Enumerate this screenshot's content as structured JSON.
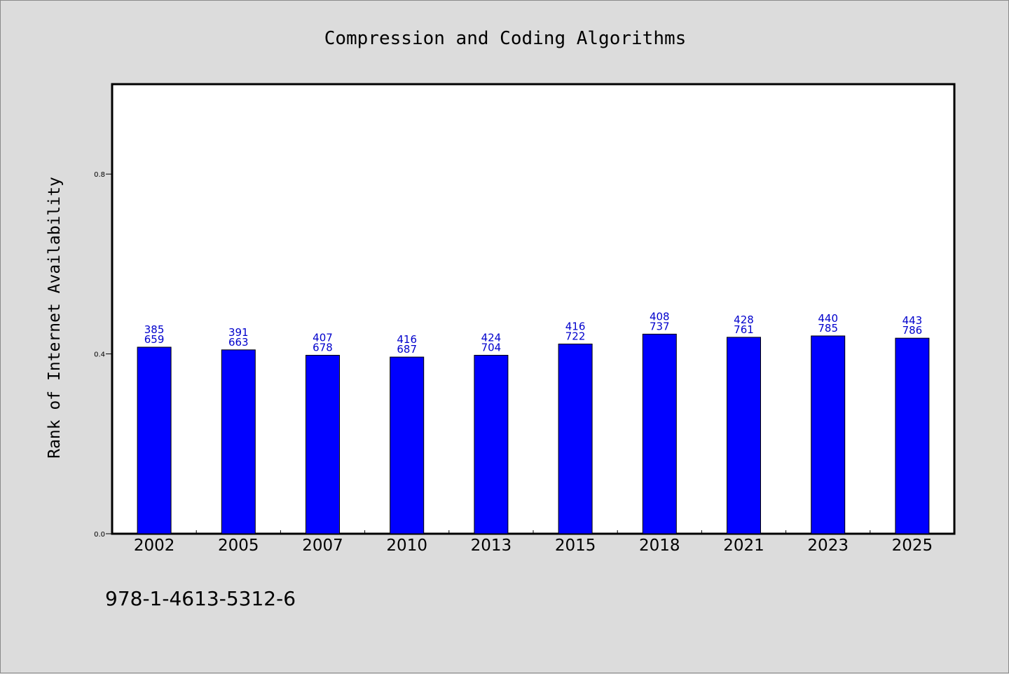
{
  "colors": {
    "background": "#dcdcdc",
    "plot_background": "#ffffff",
    "bar": "#0000ff",
    "data_label": "#0000cc"
  },
  "footnote": "978-1-4613-5312-6",
  "chart_data": {
    "type": "bar",
    "title": "Compression and Coding Algorithms",
    "xlabel": "",
    "ylabel": "Rank of Internet Availability",
    "categories": [
      "2002",
      "2005",
      "2007",
      "2010",
      "2013",
      "2015",
      "2018",
      "2021",
      "2023",
      "2025"
    ],
    "series": [
      {
        "values": [
          0.415,
          0.409,
          0.397,
          0.393,
          0.397,
          0.422,
          0.444,
          0.437,
          0.44,
          0.435
        ]
      }
    ],
    "data_labels": [
      [
        "385",
        "659"
      ],
      [
        "391",
        "663"
      ],
      [
        "407",
        "678"
      ],
      [
        "416",
        "687"
      ],
      [
        "424",
        "704"
      ],
      [
        "416",
        "722"
      ],
      [
        "408",
        "737"
      ],
      [
        "428",
        "761"
      ],
      [
        "440",
        "785"
      ],
      [
        "443",
        "786"
      ]
    ],
    "ylim": [
      0,
      1.0
    ],
    "yticks": [
      "0.0",
      "0.4",
      "0.8"
    ],
    "grid": false,
    "legend": "none"
  }
}
